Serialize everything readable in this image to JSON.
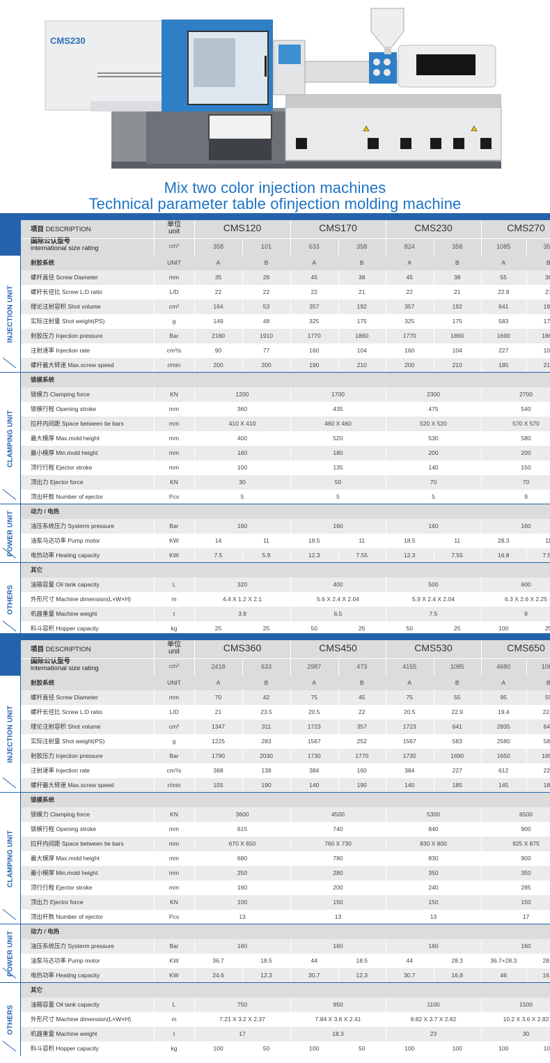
{
  "machine": {
    "brand": "CMS230",
    "colors": {
      "blue": "#2f7fc7",
      "white": "#eeeeee",
      "grey": "#8a8f94",
      "dark": "#5a5f65"
    }
  },
  "titles": {
    "line1": "Mix two color injection machines",
    "line2": "Technical parameter table ofinjection molding machine"
  },
  "colors": {
    "accent": "#2463ac",
    "title": "#1d73c5",
    "header_bg": "#dcdcdc",
    "row_grey": "#ebebeb"
  },
  "tables": [
    {
      "header": {
        "desc_zh": "项目",
        "desc_en": "DESCRIPTION",
        "unit_zh": "单位",
        "unit_en": "unit",
        "size_zh": "国际公认型号",
        "size_en": "international size rating",
        "size_unit": "cm³"
      },
      "models": [
        {
          "name": "CMS120",
          "size": [
            "358",
            "101"
          ]
        },
        {
          "name": "CMS170",
          "size": [
            "633",
            "358"
          ]
        },
        {
          "name": "CMS230",
          "size": [
            "824",
            "358"
          ]
        },
        {
          "name": "CMS270",
          "size": [
            "1085",
            "358"
          ]
        }
      ],
      "sections": [
        {
          "side": "INJECTION UNIT",
          "title": "射胶系统",
          "title_unit": "UNIT",
          "title_cells": [
            "A",
            "B",
            "A",
            "B",
            "A",
            "B",
            "A",
            "B"
          ],
          "split": true,
          "rows": [
            {
              "label": "螺杆直径 Screw Diameter",
              "unit": "mm",
              "cells": [
                "35",
                "26",
                "45",
                "38",
                "45",
                "38",
                "55",
                "38"
              ]
            },
            {
              "label": "螺杆长径比 Screw L:D ratio",
              "unit": "L/D",
              "cells": [
                "22",
                "22",
                "22",
                "21",
                "22",
                "21",
                "22.9",
                "21"
              ]
            },
            {
              "label": "理论注射容积 Shot volume",
              "unit": "cm³",
              "cells": [
                "164",
                "53",
                "357",
                "192",
                "357",
                "192",
                "641",
                "192"
              ]
            },
            {
              "label": "实际注射量 Shot weight(PS)",
              "unit": "g",
              "cells": [
                "149",
                "48",
                "325",
                "175",
                "325",
                "175",
                "583",
                "175"
              ]
            },
            {
              "label": "射胶压力 Injection pressure",
              "unit": "Bar",
              "cells": [
                "2180",
                "1910",
                "1770",
                "1860",
                "1770",
                "1860",
                "1690",
                "1860"
              ]
            },
            {
              "label": "注射速率 Injection rate",
              "unit": "cm³/s",
              "cells": [
                "90",
                "77",
                "160",
                "104",
                "160",
                "104",
                "227",
                "104"
              ]
            },
            {
              "label": "螺杆最大转速 Max.screw speed",
              "unit": "r/min",
              "cells": [
                "200",
                "200",
                "190",
                "210",
                "200",
                "210",
                "185",
                "210"
              ]
            }
          ]
        },
        {
          "side": "CLAMPING UNIT",
          "title": "锁模系统",
          "title_unit": "",
          "title_cells": [],
          "split": false,
          "rows": [
            {
              "label": "锁模力 Clamping force",
              "unit": "KN",
              "cells": [
                "1200",
                "1700",
                "2300",
                "2700"
              ]
            },
            {
              "label": "锁模行程 Opening stroke",
              "unit": "mm",
              "cells": [
                "360",
                "435",
                "475",
                "540"
              ]
            },
            {
              "label": "拉杆内间距 Space between tie bars",
              "unit": "mm",
              "cells": [
                "410 X 410",
                "460 X 460",
                "520 X 520",
                "570 X 570"
              ]
            },
            {
              "label": "最大模厚 Max.mold height",
              "unit": "mm",
              "cells": [
                "400",
                "520",
                "530",
                "580"
              ]
            },
            {
              "label": "最小模厚 Min.mold height",
              "unit": "mm",
              "cells": [
                "160",
                "180",
                "200",
                "200"
              ]
            },
            {
              "label": "顶行行程 Ejector stroke",
              "unit": "mm",
              "cells": [
                "100",
                "135",
                "140",
                "150"
              ]
            },
            {
              "label": "顶出力 Ejector force",
              "unit": "KN",
              "cells": [
                "30",
                "50",
                "70",
                "70"
              ]
            },
            {
              "label": "顶出杆数 Number of ejector",
              "unit": "Pcs",
              "cells": [
                "5",
                "5",
                "5",
                "9"
              ]
            }
          ]
        },
        {
          "side": "POWER UNIT",
          "title": "动力 / 电热",
          "title_unit": "",
          "title_cells": [],
          "split": "mixed",
          "rows": [
            {
              "label": "油压系统压力 Systerm pressure",
              "unit": "Bar",
              "cells": [
                "160",
                "160",
                "160",
                "160"
              ]
            },
            {
              "label": "油泵马达功率 Pump motor",
              "unit": "KW",
              "cells": [
                "14",
                "11",
                "18.5",
                "11",
                "18.5",
                "11",
                "28.3",
                "11"
              ]
            },
            {
              "label": "电热功率 Heating capacity",
              "unit": "KW",
              "cells": [
                "7.5",
                "5.9",
                "12.3",
                "7.55",
                "12.3",
                "7.55",
                "16.8",
                "7.55"
              ]
            }
          ]
        },
        {
          "side": "OTHERS",
          "title": "其它",
          "title_unit": "",
          "title_cells": [],
          "split": "mixed",
          "rows": [
            {
              "label": "油箱容量 Oil tank capacity",
              "unit": "L",
              "cells": [
                "320",
                "400",
                "500",
                "600"
              ]
            },
            {
              "label": "外形尺寸 Machine dimension(L×W×H)",
              "unit": "m",
              "cells": [
                "4.4 X 1.2 X 2.1",
                "5.6 X 2.4 X 2.04",
                "5.9 X 2.4 X 2.04",
                "6.3 X 2.6 X 2.25"
              ]
            },
            {
              "label": "机器重量 Machine weight",
              "unit": "t",
              "cells": [
                "3.9",
                "6.5",
                "7.5",
                "9"
              ]
            },
            {
              "label": "料斗容积 Hopper capacity",
              "unit": "kg",
              "cells": [
                "25",
                "25",
                "50",
                "25",
                "50",
                "25",
                "100",
                "25"
              ]
            }
          ]
        }
      ]
    },
    {
      "header": {
        "desc_zh": "项目",
        "desc_en": "DESCRIPTION",
        "unit_zh": "单位",
        "unit_en": "unit",
        "size_zh": "国际公认型号",
        "size_en": "international size rating",
        "size_unit": "cm³"
      },
      "models": [
        {
          "name": "CMS360",
          "size": [
            "2418",
            "633"
          ]
        },
        {
          "name": "CMS450",
          "size": [
            "2987",
            "473"
          ]
        },
        {
          "name": "CMS530",
          "size": [
            "4155",
            "1085"
          ]
        },
        {
          "name": "CMS650",
          "size": [
            "4680",
            "1085"
          ]
        }
      ],
      "sections": [
        {
          "side": "INJECTION UNIT",
          "title": "射胶系统",
          "title_unit": "UNIT",
          "title_cells": [
            "A",
            "B",
            "A",
            "B",
            "A",
            "B",
            "A",
            "B"
          ],
          "split": true,
          "rows": [
            {
              "label": "螺杆直径 Screw Diameter",
              "unit": "mm",
              "cells": [
                "70",
                "42",
                "75",
                "45",
                "75",
                "55",
                "95",
                "55"
              ]
            },
            {
              "label": "螺杆长径比 Screw L:D ratio",
              "unit": "L/D",
              "cells": [
                "21",
                "23.5",
                "20.5",
                "22",
                "20.5",
                "22.9",
                "19.4",
                "22.9"
              ]
            },
            {
              "label": "理论注射容积 Shot volume",
              "unit": "cm³",
              "cells": [
                "1347",
                "311",
                "1723",
                "357",
                "1723",
                "641",
                "2835",
                "641"
              ]
            },
            {
              "label": "实际注射量 Shot weight(PS)",
              "unit": "g",
              "cells": [
                "1225",
                "283",
                "1567",
                "252",
                "1567",
                "583",
                "2580",
                "583"
              ]
            },
            {
              "label": "射胶压力 Injection pressure",
              "unit": "Bar",
              "cells": [
                "1790",
                "2030",
                "1730",
                "1770",
                "1730",
                "1690",
                "1650",
                "1690"
              ]
            },
            {
              "label": "注射速率 Injection rate",
              "unit": "cm³/s",
              "cells": [
                "368",
                "138",
                "384",
                "160",
                "384",
                "227",
                "612",
                "227"
              ]
            },
            {
              "label": "螺杆最大转速 Max.screw speed",
              "unit": "r/min",
              "cells": [
                "155",
                "190",
                "140",
                "190",
                "140",
                "185",
                "145",
                "185"
              ]
            }
          ]
        },
        {
          "side": "CLAMPING UNIT",
          "title": "锁模系统",
          "title_unit": "",
          "title_cells": [],
          "split": false,
          "rows": [
            {
              "label": "锁模力 Clamping force",
              "unit": "KN",
              "cells": [
                "3600",
                "4500",
                "5300",
                "6500"
              ]
            },
            {
              "label": "锁模行程 Opening stroke",
              "unit": "mm",
              "cells": [
                "615",
                "740",
                "840",
                "900"
              ]
            },
            {
              "label": "拉杆内间距 Space between tie bars",
              "unit": "mm",
              "cells": [
                "670 X 650",
                "760 X 730",
                "830 X 800",
                "925 X 875"
              ]
            },
            {
              "label": "最大模厚 Max.mold height",
              "unit": "mm",
              "cells": [
                "680",
                "780",
                "830",
                "900"
              ]
            },
            {
              "label": "最小模厚 Min.mold height",
              "unit": "mm",
              "cells": [
                "250",
                "280",
                "350",
                "350"
              ]
            },
            {
              "label": "顶行行程 Ejector stroke",
              "unit": "mm",
              "cells": [
                "160",
                "200",
                "240",
                "285"
              ]
            },
            {
              "label": "顶出力 Ejector force",
              "unit": "KN",
              "cells": [
                "100",
                "150",
                "150",
                "150"
              ]
            },
            {
              "label": "顶出杆数 Number of ejector",
              "unit": "Pcs",
              "cells": [
                "13",
                "13",
                "13",
                "17"
              ]
            }
          ]
        },
        {
          "side": "POWER UNIT",
          "title": "动力 / 电热",
          "title_unit": "",
          "title_cells": [],
          "split": "mixed",
          "rows": [
            {
              "label": "油压系统压力 Systerm pressure",
              "unit": "Bar",
              "cells": [
                "160",
                "160",
                "160",
                "160"
              ]
            },
            {
              "label": "油泵马达功率 Pump motor",
              "unit": "KW",
              "cells": [
                "36.7",
                "18.5",
                "44",
                "18.5",
                "44",
                "28.3",
                "36.7+28.3",
                "28.3"
              ]
            },
            {
              "label": "电热功率 Heating capacity",
              "unit": "KW",
              "cells": [
                "24.6",
                "12.3",
                "30.7",
                "12.3",
                "30.7",
                "16.8",
                "46",
                "16.8"
              ]
            }
          ]
        },
        {
          "side": "OTHERS",
          "title": "其它",
          "title_unit": "",
          "title_cells": [],
          "split": "mixed",
          "rows": [
            {
              "label": "油箱容量 Oil tank capacity",
              "unit": "L",
              "cells": [
                "750",
                "950",
                "1100",
                "1500"
              ]
            },
            {
              "label": "外形尺寸 Machine dimension(L×W×H)",
              "unit": "m",
              "cells": [
                "7.21 X 3.2 X 2.37",
                "7.84 X 3.6 X 2.41",
                "8.82 X 3.7 X 2.82",
                "10.2 X 3.6 X 2.82"
              ]
            },
            {
              "label": "机器重量 Machine weight",
              "unit": "t",
              "cells": [
                "17",
                "18.3",
                "23",
                "30"
              ]
            },
            {
              "label": "料斗容积 Hopper capacity",
              "unit": "kg",
              "cells": [
                "100",
                "50",
                "100",
                "50",
                "100",
                "100",
                "100",
                "100"
              ]
            }
          ]
        }
      ]
    }
  ]
}
